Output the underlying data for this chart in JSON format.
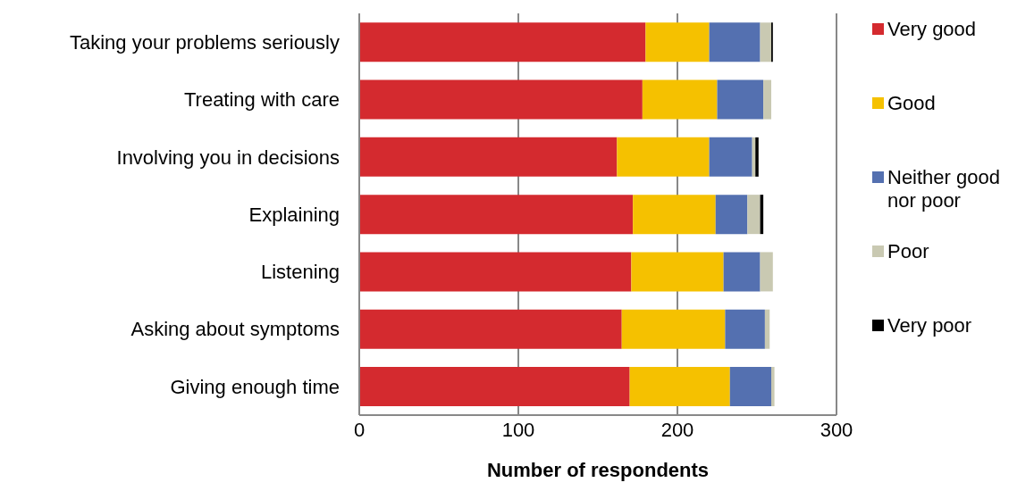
{
  "chart_data": {
    "type": "bar",
    "orientation": "horizontal",
    "stacked": true,
    "xlabel": "Number of respondents",
    "categories": [
      "Taking your problems seriously",
      "Treating with care",
      "Involving you in decisions",
      "Explaining",
      "Listening",
      "Asking about symptoms",
      "Giving enough time"
    ],
    "series": [
      {
        "name": "Very good",
        "color": "#d42a2f",
        "values": [
          180,
          178,
          162,
          172,
          171,
          165,
          170
        ]
      },
      {
        "name": "Good",
        "color": "#f5c100",
        "values": [
          40,
          47,
          58,
          52,
          58,
          65,
          63
        ]
      },
      {
        "name": "Neither good nor poor",
        "color": "#5470b0",
        "values": [
          32,
          29,
          27,
          20,
          23,
          25,
          26
        ]
      },
      {
        "name": "Poor",
        "color": "#c9c9b2",
        "values": [
          7,
          5,
          2,
          8,
          8,
          3,
          2
        ]
      },
      {
        "name": "Very poor",
        "color": "#000000",
        "values": [
          1,
          0,
          2,
          2,
          0,
          0,
          0
        ]
      }
    ],
    "xlim": [
      0,
      300
    ],
    "xticks": [
      0,
      100,
      200,
      300
    ],
    "grid": "x",
    "legend": "right"
  }
}
